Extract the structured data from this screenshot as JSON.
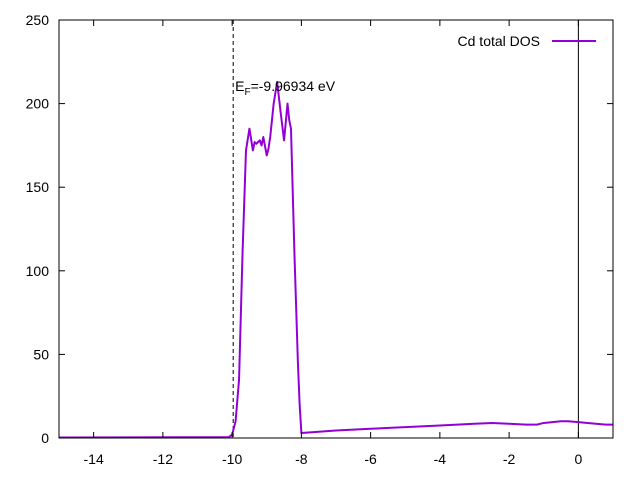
{
  "chart_data": {
    "type": "line",
    "title": "",
    "xlabel": "",
    "ylabel": "",
    "xlim": [
      -15,
      1
    ],
    "ylim": [
      0,
      250
    ],
    "grid": false,
    "legend": {
      "placement": "top-right"
    },
    "x_ticks": [
      -14,
      -12,
      -10,
      -8,
      -6,
      -4,
      -2,
      0
    ],
    "y_ticks": [
      0,
      50,
      100,
      150,
      200,
      250
    ],
    "series": [
      {
        "name": "Cd total DOS",
        "color": "#9400d3",
        "x": [
          -15.0,
          -10.1,
          -10.0,
          -9.9,
          -9.8,
          -9.7,
          -9.6,
          -9.5,
          -9.4,
          -9.35,
          -9.3,
          -9.2,
          -9.15,
          -9.1,
          -9.0,
          -8.95,
          -8.9,
          -8.8,
          -8.7,
          -8.6,
          -8.5,
          -8.4,
          -8.35,
          -8.3,
          -8.2,
          -8.1,
          -8.05,
          -8.0,
          -7.0,
          -6.0,
          -5.0,
          -4.0,
          -3.0,
          -2.5,
          -2.0,
          -1.5,
          -1.2,
          -1.0,
          -0.5,
          -0.3,
          0.0,
          0.5,
          0.8,
          1.0
        ],
        "y": [
          0.3,
          0.5,
          2,
          10,
          35,
          110,
          172,
          185,
          172,
          177,
          176,
          178,
          175,
          180,
          169,
          173,
          180,
          200,
          213,
          195,
          178,
          200,
          190,
          185,
          110,
          45,
          20,
          3,
          4.5,
          5.5,
          6.5,
          7.5,
          8.5,
          9,
          8.5,
          8,
          8,
          9,
          10,
          10,
          9.5,
          8.5,
          8,
          8
        ]
      }
    ],
    "reference_lines": [
      {
        "axis": "x",
        "value": -9.96934,
        "style": "dashed",
        "color": "#000000"
      },
      {
        "axis": "x",
        "value": 0,
        "style": "solid",
        "color": "#000000"
      }
    ],
    "annotations": [
      {
        "text_main": "E",
        "text_sub": "F",
        "text_rest": "=-9.96934 eV",
        "x": -10.0,
        "y": 205
      }
    ]
  }
}
